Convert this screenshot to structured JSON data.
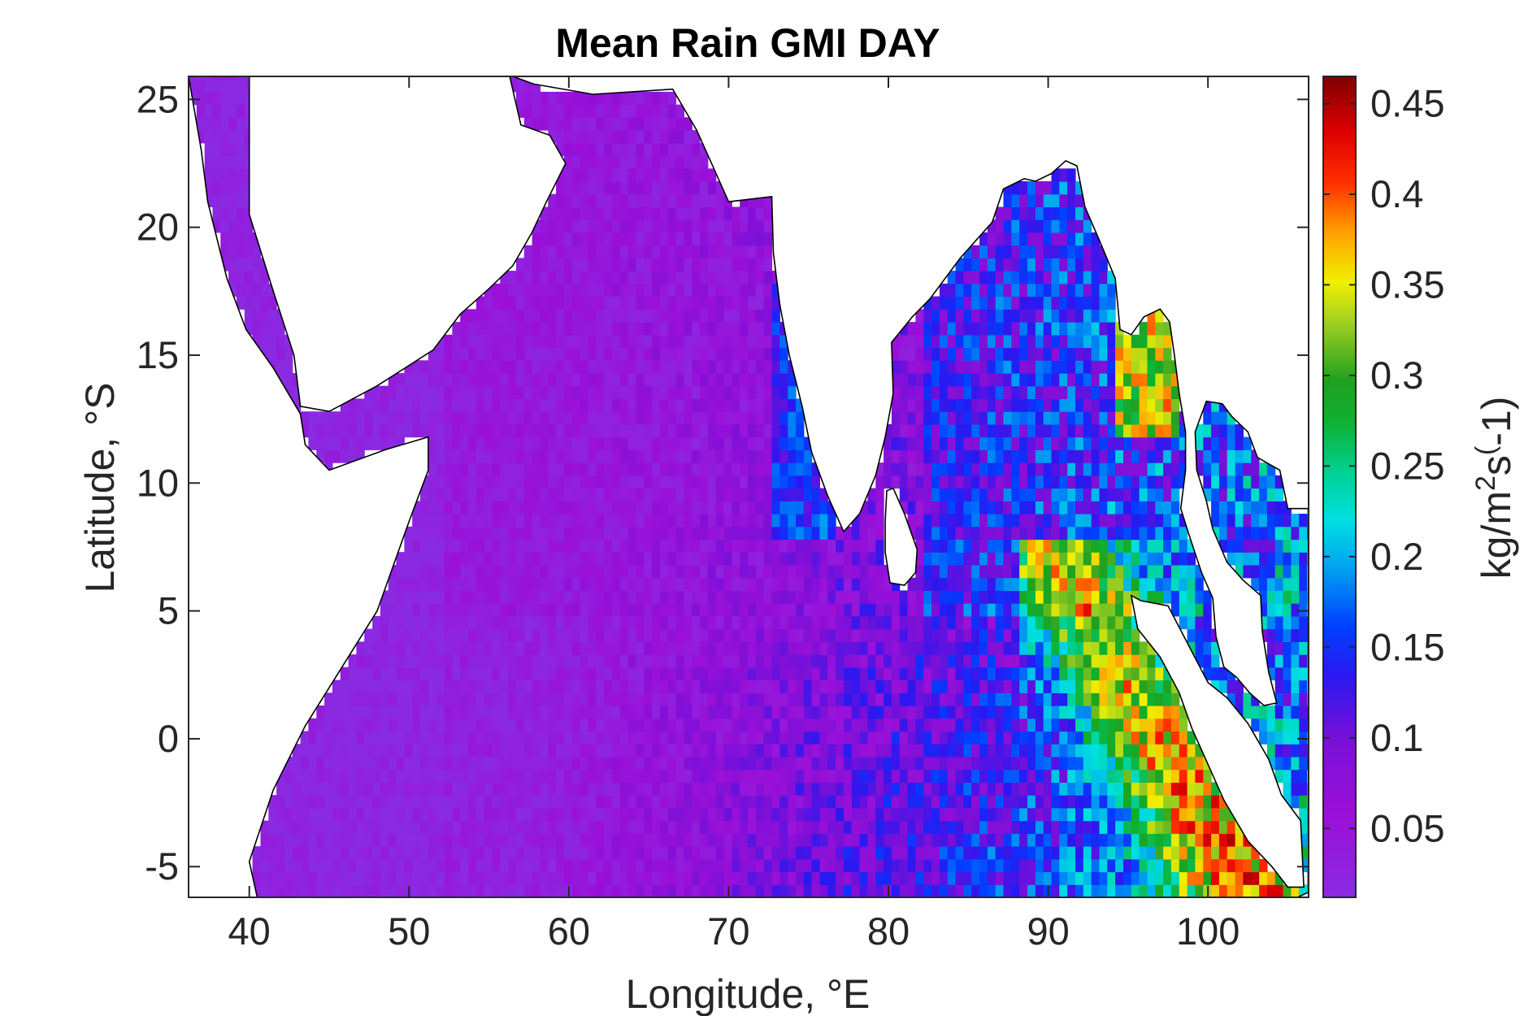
{
  "chart_data": {
    "type": "heatmap",
    "title": "Mean Rain GMI DAY",
    "xlabel": "Longitude, °E",
    "ylabel": "Latitude, °S",
    "xlim": [
      36.2,
      106.3
    ],
    "ylim": [
      -6.2,
      25.9
    ],
    "xticks": [
      {
        "value": 40,
        "label": "40"
      },
      {
        "value": 50,
        "label": "50"
      },
      {
        "value": 60,
        "label": "60"
      },
      {
        "value": 70,
        "label": "70"
      },
      {
        "value": 80,
        "label": "80"
      },
      {
        "value": 90,
        "label": "90"
      },
      {
        "value": 100,
        "label": "100"
      }
    ],
    "yticks": [
      {
        "value": 25,
        "label": "25"
      },
      {
        "value": 20,
        "label": "20"
      },
      {
        "value": 15,
        "label": "15"
      },
      {
        "value": 10,
        "label": "10"
      },
      {
        "value": 5,
        "label": "5"
      },
      {
        "value": 0,
        "label": "0"
      },
      {
        "value": -5,
        "label": "-5"
      }
    ],
    "colorbar": {
      "label": "kg/m²s⁽⁻¹⁾",
      "label_text": "kg/m2s(-1)",
      "clim": [
        0.012,
        0.465
      ],
      "ticks": [
        {
          "value": 0.05,
          "label": "0.05"
        },
        {
          "value": 0.1,
          "label": "0.1"
        },
        {
          "value": 0.15,
          "label": "0.15"
        },
        {
          "value": 0.2,
          "label": "0.2"
        },
        {
          "value": 0.25,
          "label": "0.25"
        },
        {
          "value": 0.3,
          "label": "0.3"
        },
        {
          "value": 0.35,
          "label": "0.35"
        },
        {
          "value": 0.4,
          "label": "0.4"
        },
        {
          "value": 0.45,
          "label": "0.45"
        }
      ]
    },
    "field_estimate": {
      "note_hidden": true,
      "lat_step": 1.5,
      "lon_step": 2,
      "lon_start": 37,
      "lat_start": -6,
      "rows": []
    }
  }
}
